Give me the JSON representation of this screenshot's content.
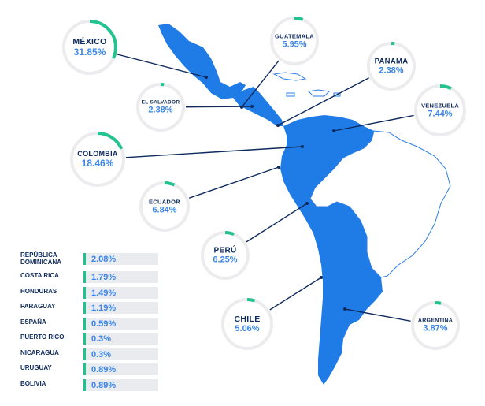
{
  "colors": {
    "land": "#1f7be6",
    "outline": "#2f7ee6",
    "leader": "#0e2a5c",
    "ring_track": "#ececee",
    "ring_accent": "#22c38e",
    "label": "#0e2a5c",
    "value": "#3a86e8"
  },
  "countries": [
    {
      "id": "mexico",
      "name": "MÉXICO",
      "value": "31.85%",
      "share": 0.3185
    },
    {
      "id": "guatemala",
      "name": "GUATEMALA",
      "value": "5.95%",
      "share": 0.0595
    },
    {
      "id": "panama",
      "name": "PANAMA",
      "value": "2.38%",
      "share": 0.0238
    },
    {
      "id": "el-salvador",
      "name": "EL SALVADOR",
      "value": "2.38%",
      "share": 0.0238
    },
    {
      "id": "venezuela",
      "name": "VENEZUELA",
      "value": "7.44%",
      "share": 0.0744
    },
    {
      "id": "colombia",
      "name": "COLOMBIA",
      "value": "18.46%",
      "share": 0.1846
    },
    {
      "id": "ecuador",
      "name": "ECUADOR",
      "value": "6.84%",
      "share": 0.0684
    },
    {
      "id": "peru",
      "name": "PERÚ",
      "value": "6.25%",
      "share": 0.0625
    },
    {
      "id": "chile",
      "name": "CHILE",
      "value": "5.06%",
      "share": 0.0506
    },
    {
      "id": "argentina",
      "name": "ARGENTINA",
      "value": "3.87%",
      "share": 0.0387
    }
  ],
  "other_countries": [
    {
      "name": "REPÚBLICA\nDOMINICANA",
      "value": "2.08%"
    },
    {
      "name": "COSTA RICA",
      "value": "1.79%"
    },
    {
      "name": "HONDURAS",
      "value": "1.49%"
    },
    {
      "name": "PARAGUAY",
      "value": "1.19%"
    },
    {
      "name": "ESPAÑA",
      "value": "0.59%"
    },
    {
      "name": "PUERTO RICO",
      "value": "0.3%"
    },
    {
      "name": "NICARAGUA",
      "value": "0.3%"
    },
    {
      "name": "URUGUAY",
      "value": "0.89%"
    },
    {
      "name": "BOLIVIA",
      "value": "0.89%"
    }
  ]
}
